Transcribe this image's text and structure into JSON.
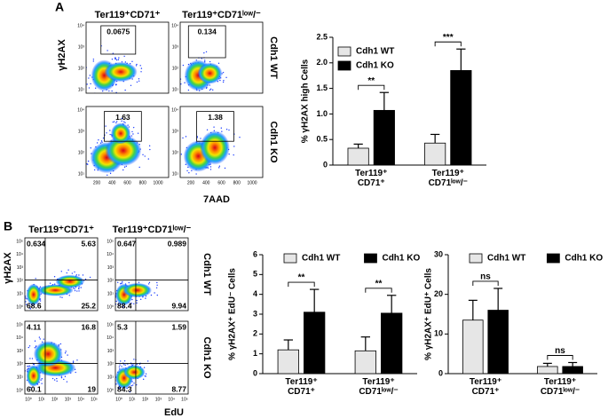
{
  "panel_labels": [
    "A",
    "B"
  ],
  "flow_a": {
    "columns": [
      "Ter119⁺CD71⁺",
      "Ter119⁺CD71ˡᵒʷ/⁻"
    ],
    "rows": [
      "Cdh1 WT",
      "Cdh1 KO"
    ],
    "y_label": "γH2AX",
    "x_label": "7AAD",
    "yticks": [
      "10¹",
      "10²",
      "10³",
      "10⁴"
    ],
    "xticks": [
      "200",
      "400",
      "600",
      "800",
      "1000"
    ],
    "gates": [
      [
        "0.0675",
        "0.134"
      ],
      [
        "1.63",
        "1.38"
      ]
    ]
  },
  "flow_b": {
    "columns": [
      "Ter119⁺CD71⁺",
      "Ter119⁺CD71ˡᵒʷ/⁻"
    ],
    "rows": [
      "Cdh1 WT",
      "Cdh1 KO"
    ],
    "y_label": "γH2AX",
    "x_label": "EdU",
    "yticks": [
      "10⁰",
      "10¹",
      "10²",
      "10³",
      "10⁴",
      "10⁵"
    ],
    "xticks": [
      "10⁰",
      "10¹",
      "10²",
      "10³",
      "10⁴",
      "10⁵"
    ],
    "quadrants": [
      [
        [
          "0.634",
          "5.63",
          "68.6",
          "25.2"
        ],
        [
          "0.647",
          "0.989",
          "88.4",
          "9.94"
        ]
      ],
      [
        [
          "4.11",
          "16.8",
          "60.1",
          "19"
        ],
        [
          "5.3",
          "1.59",
          "84.3",
          "8.77"
        ]
      ]
    ]
  },
  "chart_data": [
    {
      "type": "bar",
      "y_label": "% γH2AX high Cells",
      "categories": [
        "Ter119⁺ CD71⁺",
        "Ter119⁺ CD71ˡᵒʷ/⁻"
      ],
      "series": [
        {
          "name": "Cdh1 WT",
          "color": "#e6e6e6",
          "values": [
            0.33,
            0.43
          ],
          "errors": [
            0.08,
            0.17
          ]
        },
        {
          "name": "Cdh1 KO",
          "color": "#000000",
          "values": [
            1.07,
            1.85
          ],
          "errors": [
            0.35,
            0.42
          ]
        }
      ],
      "annotations": [
        "**",
        "***"
      ],
      "ylim": [
        0,
        2.5
      ],
      "yticks": [
        0,
        0.5,
        {
          "value": 1,
          "label": "1.0"
        },
        1.5,
        {
          "value": 2,
          "label": "2.0"
        },
        2.5
      ],
      "legend": "upper left"
    },
    {
      "type": "bar",
      "y_label": "% γH2AX⁺ EdU⁻ Cells",
      "categories": [
        "Ter119⁺ CD71⁺",
        "Ter119⁺ CD71ˡᵒʷ/⁻"
      ],
      "series": [
        {
          "name": "Cdh1 WT",
          "color": "#e6e6e6",
          "values": [
            1.2,
            1.15
          ],
          "errors": [
            0.5,
            0.7
          ]
        },
        {
          "name": "Cdh1 KO",
          "color": "#000000",
          "values": [
            3.1,
            3.05
          ],
          "errors": [
            1.15,
            0.9
          ]
        }
      ],
      "annotations": [
        "**",
        "**"
      ],
      "ylim": [
        0,
        6
      ],
      "yticks": [
        0,
        1,
        2,
        3,
        4,
        5,
        6
      ],
      "legend": "top"
    },
    {
      "type": "bar",
      "y_label": "% γH2AX⁺ EdU⁺ Cells",
      "categories": [
        "Ter119⁺ CD71⁺",
        "Ter119⁺ CD71ˡᵒʷ/⁻"
      ],
      "series": [
        {
          "name": "Cdh1 WT",
          "color": "#e6e6e6",
          "values": [
            13.5,
            1.8
          ],
          "errors": [
            5,
            0.8
          ]
        },
        {
          "name": "Cdh1 KO",
          "color": "#000000",
          "values": [
            16,
            1.8
          ],
          "errors": [
            5.5,
            1
          ]
        }
      ],
      "annotations": [
        "ns",
        "ns"
      ],
      "ylim": [
        0,
        30
      ],
      "yticks": [
        0,
        10,
        20,
        30
      ],
      "legend": "top"
    }
  ]
}
